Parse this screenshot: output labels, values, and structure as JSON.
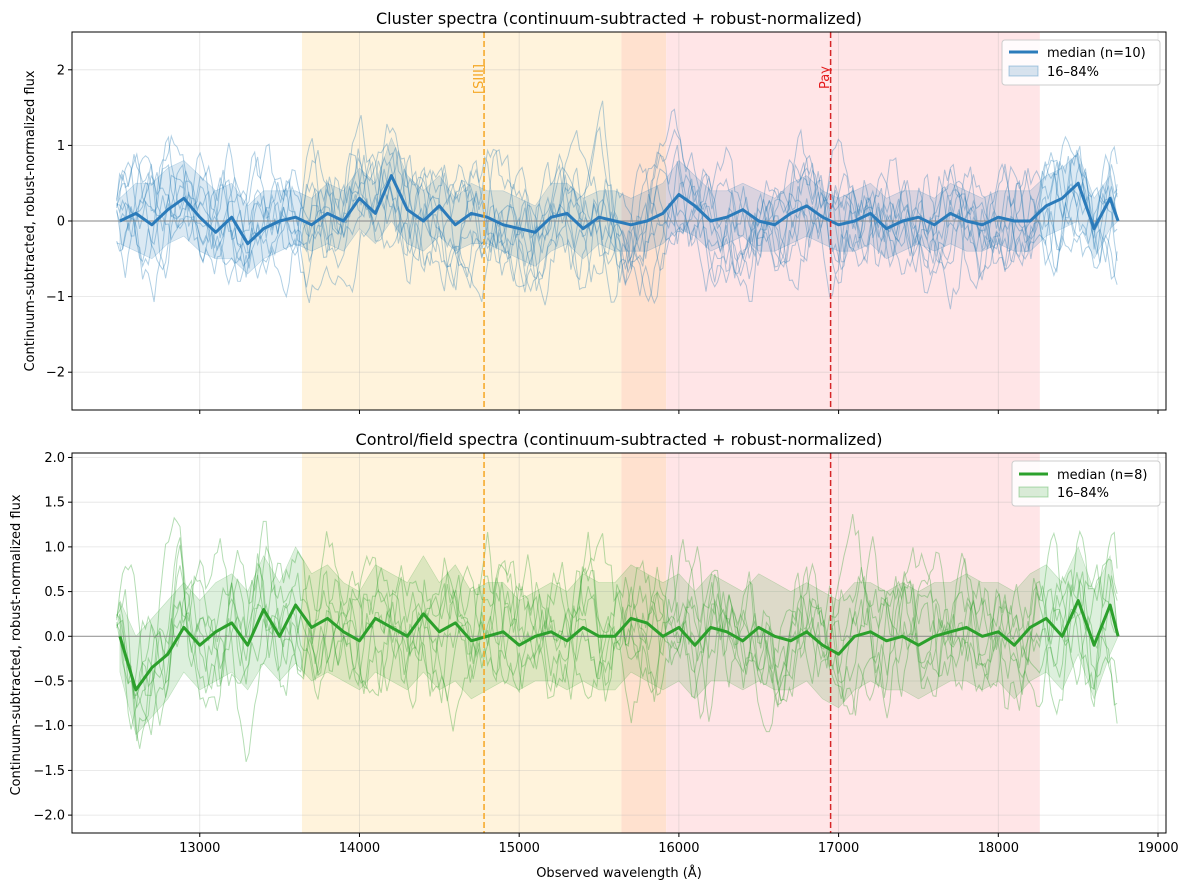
{
  "chart_data": [
    {
      "type": "line",
      "title": "Cluster spectra (continuum-subtracted + robust-normalized)",
      "xlabel": "",
      "ylabel": "Continuum-subtracted, robust-normalized flux",
      "xlim": [
        12200,
        19050
      ],
      "ylim": [
        -2.5,
        2.5
      ],
      "yticks": [
        -2,
        -1,
        0,
        1,
        2
      ],
      "ytick_labels": [
        "−2",
        "−1",
        "0",
        "1",
        "2"
      ],
      "xticks": [
        13000,
        14000,
        15000,
        16000,
        17000,
        18000,
        19000
      ],
      "xtick_labels": [
        "",
        "",
        "",
        "",
        "",
        "",
        ""
      ],
      "grid": true,
      "legend_position": "top-right",
      "legend": {
        "median": "median (n=10)",
        "band": "16–84%"
      },
      "color": "#1f77b4",
      "shaded_bands": [
        {
          "x0": 13640,
          "x1": 15640,
          "color": "#fff3dc"
        },
        {
          "x0": 15640,
          "x1": 15920,
          "color": "#ffe1cf"
        },
        {
          "x0": 15920,
          "x1": 18260,
          "color": "#ffe5e7"
        }
      ],
      "lines": [
        {
          "label": "[SIII]",
          "x": 14780,
          "color": "#f5a623"
        },
        {
          "label": "Paγ",
          "x": 16950,
          "color": "#d62728"
        }
      ],
      "median": {
        "x": [
          12500,
          12600,
          12700,
          12800,
          12900,
          13000,
          13100,
          13200,
          13300,
          13400,
          13500,
          13600,
          13700,
          13800,
          13900,
          14000,
          14100,
          14200,
          14300,
          14400,
          14500,
          14600,
          14700,
          14800,
          14900,
          15000,
          15100,
          15200,
          15300,
          15400,
          15500,
          15600,
          15700,
          15800,
          15900,
          16000,
          16100,
          16200,
          16300,
          16400,
          16500,
          16600,
          16700,
          16800,
          16900,
          17000,
          17100,
          17200,
          17300,
          17400,
          17500,
          17600,
          17700,
          17800,
          17900,
          18000,
          18100,
          18200,
          18300,
          18400,
          18500,
          18600,
          18700,
          18750
        ],
        "y": [
          0.0,
          0.1,
          -0.05,
          0.15,
          0.3,
          0.05,
          -0.15,
          0.05,
          -0.3,
          -0.1,
          0.0,
          0.05,
          -0.05,
          0.1,
          0.0,
          0.3,
          0.1,
          0.6,
          0.15,
          0.0,
          0.2,
          -0.05,
          0.1,
          0.05,
          -0.05,
          -0.1,
          -0.15,
          0.05,
          0.1,
          -0.1,
          0.05,
          0.0,
          -0.05,
          0.0,
          0.1,
          0.35,
          0.2,
          0.0,
          0.05,
          0.15,
          0.0,
          -0.05,
          0.1,
          0.2,
          0.05,
          -0.05,
          0.0,
          0.1,
          -0.1,
          0.0,
          0.05,
          -0.05,
          0.1,
          0.0,
          -0.05,
          0.05,
          0.0,
          0.0,
          0.2,
          0.3,
          0.5,
          -0.1,
          0.3,
          0.0
        ]
      },
      "band_lower": [
        -0.3,
        -0.4,
        -0.5,
        -0.3,
        -0.2,
        -0.4,
        -0.5,
        -0.5,
        -0.7,
        -0.5,
        -0.4,
        -0.3,
        -0.4,
        -0.3,
        -0.4,
        -0.1,
        -0.3,
        0.0,
        -0.3,
        -0.4,
        -0.2,
        -0.4,
        -0.3,
        -0.3,
        -0.4,
        -0.5,
        -0.6,
        -0.4,
        -0.3,
        -0.5,
        -0.3,
        -0.4,
        -0.4,
        -0.4,
        -0.3,
        -0.1,
        -0.2,
        -0.4,
        -0.3,
        -0.2,
        -0.4,
        -0.4,
        -0.3,
        -0.2,
        -0.3,
        -0.4,
        -0.4,
        -0.3,
        -0.5,
        -0.4,
        -0.3,
        -0.4,
        -0.3,
        -0.4,
        -0.4,
        -0.3,
        -0.4,
        -0.4,
        -0.2,
        -0.1,
        0.0,
        -0.5,
        -0.1,
        0.0
      ],
      "band_upper": [
        0.3,
        0.5,
        0.5,
        0.7,
        0.8,
        0.6,
        0.4,
        0.5,
        0.2,
        0.4,
        0.4,
        0.4,
        0.3,
        0.5,
        0.4,
        0.7,
        0.5,
        1.1,
        0.6,
        0.4,
        0.6,
        0.3,
        0.5,
        0.4,
        0.4,
        0.3,
        0.2,
        0.5,
        0.5,
        0.3,
        0.4,
        0.4,
        0.3,
        0.4,
        0.5,
        0.8,
        0.6,
        0.4,
        0.4,
        0.5,
        0.4,
        0.3,
        0.5,
        0.6,
        0.4,
        0.3,
        0.4,
        0.5,
        0.3,
        0.4,
        0.4,
        0.3,
        0.5,
        0.4,
        0.3,
        0.4,
        0.4,
        0.4,
        0.6,
        0.7,
        0.9,
        0.3,
        0.6,
        0.0
      ],
      "n_individual_spectra": 10
    },
    {
      "type": "line",
      "title": "Control/field spectra (continuum-subtracted + robust-normalized)",
      "xlabel": "Observed wavelength (Å)",
      "ylabel": "Continuum-subtracted, robust-normalized flux",
      "xlim": [
        12200,
        19050
      ],
      "ylim": [
        -2.2,
        2.05
      ],
      "yticks": [
        -2.0,
        -1.5,
        -1.0,
        -0.5,
        0.0,
        0.5,
        1.0,
        1.5,
        2.0
      ],
      "ytick_labels": [
        "−2.0",
        "−1.5",
        "−1.0",
        "−0.5",
        "0.0",
        "0.5",
        "1.0",
        "1.5",
        "2.0"
      ],
      "xticks": [
        13000,
        14000,
        15000,
        16000,
        17000,
        18000,
        19000
      ],
      "xtick_labels": [
        "13000",
        "14000",
        "15000",
        "16000",
        "17000",
        "18000",
        "19000"
      ],
      "grid": true,
      "legend_position": "top-right",
      "legend": {
        "median": "median (n=8)",
        "band": "16–84%"
      },
      "color": "#2ca02c",
      "shaded_bands": [
        {
          "x0": 13640,
          "x1": 15640,
          "color": "#fff3dc"
        },
        {
          "x0": 15640,
          "x1": 15920,
          "color": "#ffe1cf"
        },
        {
          "x0": 15920,
          "x1": 18260,
          "color": "#ffe5e7"
        }
      ],
      "lines": [
        {
          "label": "",
          "x": 14780,
          "color": "#f5a623"
        },
        {
          "label": "",
          "x": 16950,
          "color": "#d62728"
        }
      ],
      "median": {
        "x": [
          12500,
          12600,
          12700,
          12800,
          12900,
          13000,
          13100,
          13200,
          13300,
          13400,
          13500,
          13600,
          13700,
          13800,
          13900,
          14000,
          14100,
          14200,
          14300,
          14400,
          14500,
          14600,
          14700,
          14800,
          14900,
          15000,
          15100,
          15200,
          15300,
          15400,
          15500,
          15600,
          15700,
          15800,
          15900,
          16000,
          16100,
          16200,
          16300,
          16400,
          16500,
          16600,
          16700,
          16800,
          16900,
          17000,
          17100,
          17200,
          17300,
          17400,
          17500,
          17600,
          17700,
          17800,
          17900,
          18000,
          18100,
          18200,
          18300,
          18400,
          18500,
          18600,
          18700,
          18750
        ],
        "y": [
          0.0,
          -0.6,
          -0.35,
          -0.2,
          0.1,
          -0.1,
          0.05,
          0.15,
          -0.1,
          0.3,
          0.0,
          0.35,
          0.1,
          0.2,
          0.05,
          -0.05,
          0.2,
          0.1,
          0.0,
          0.25,
          0.05,
          0.15,
          -0.05,
          0.0,
          0.05,
          -0.1,
          0.0,
          0.05,
          -0.05,
          0.1,
          0.0,
          0.0,
          0.2,
          0.15,
          0.0,
          0.1,
          -0.1,
          0.1,
          0.05,
          -0.05,
          0.1,
          0.0,
          -0.05,
          0.05,
          -0.1,
          -0.2,
          0.0,
          0.05,
          -0.05,
          0.0,
          -0.1,
          0.0,
          0.05,
          0.1,
          0.0,
          0.05,
          -0.1,
          0.1,
          0.2,
          0.0,
          0.4,
          -0.1,
          0.35,
          0.0
        ]
      },
      "band_lower": [
        -0.4,
        -1.1,
        -0.9,
        -0.7,
        -0.4,
        -0.6,
        -0.5,
        -0.4,
        -0.6,
        -0.3,
        -0.5,
        -0.3,
        -0.5,
        -0.4,
        -0.5,
        -0.6,
        -0.4,
        -0.5,
        -0.6,
        -0.4,
        -0.6,
        -0.5,
        -0.7,
        -0.6,
        -0.5,
        -0.6,
        -0.5,
        -0.5,
        -0.6,
        -0.5,
        -0.6,
        -0.6,
        -0.4,
        -0.5,
        -0.6,
        -0.5,
        -0.7,
        -0.5,
        -0.5,
        -0.6,
        -0.5,
        -0.6,
        -0.6,
        -0.5,
        -0.7,
        -0.8,
        -0.6,
        -0.5,
        -0.6,
        -0.6,
        -0.7,
        -0.6,
        -0.5,
        -0.5,
        -0.6,
        -0.5,
        -0.7,
        -0.5,
        -0.4,
        -0.6,
        -0.2,
        -0.7,
        -0.2,
        0.0
      ],
      "band_upper": [
        0.4,
        0.0,
        0.2,
        0.4,
        0.6,
        0.4,
        0.6,
        0.7,
        0.5,
        0.9,
        0.6,
        1.0,
        0.7,
        0.8,
        0.6,
        0.5,
        0.8,
        0.7,
        0.6,
        0.9,
        0.6,
        0.8,
        0.5,
        0.6,
        0.6,
        0.4,
        0.5,
        0.6,
        0.5,
        0.7,
        0.6,
        0.6,
        0.8,
        0.7,
        0.6,
        0.7,
        0.5,
        0.7,
        0.6,
        0.5,
        0.7,
        0.6,
        0.5,
        0.6,
        0.5,
        0.4,
        0.6,
        0.6,
        0.5,
        0.6,
        0.5,
        0.6,
        0.6,
        0.7,
        0.6,
        0.6,
        0.5,
        0.7,
        0.8,
        0.6,
        1.0,
        0.5,
        0.9,
        0.0
      ],
      "n_individual_spectra": 8
    }
  ]
}
